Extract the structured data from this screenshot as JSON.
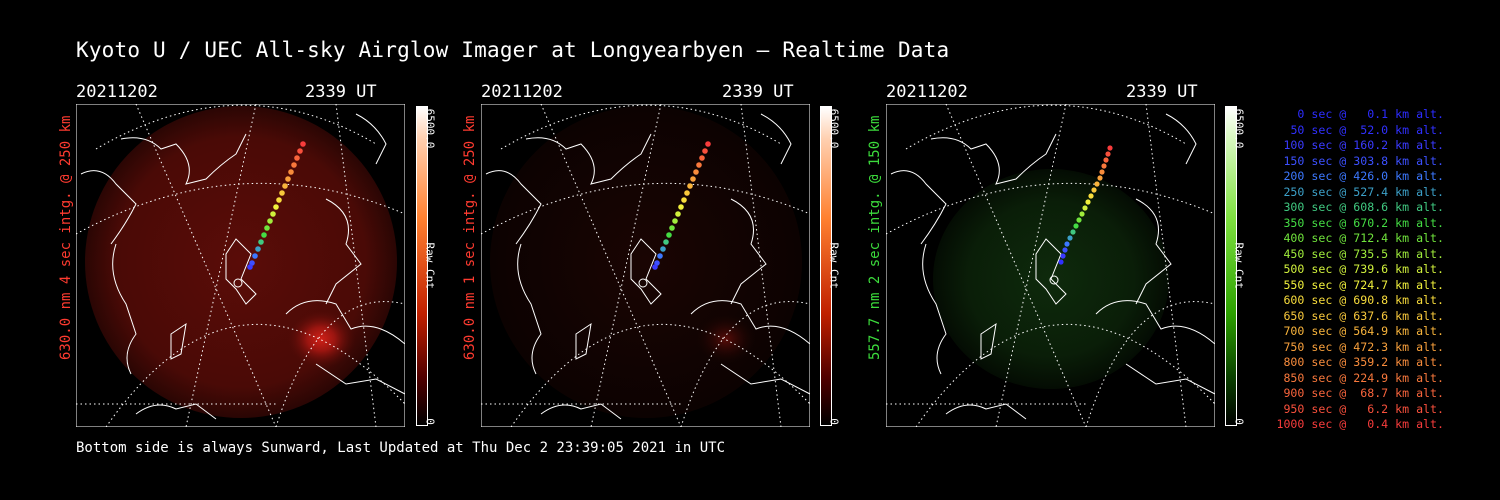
{
  "title": "Kyoto U / UEC All-sky Airglow Imager at Longyearbyen — Realtime Data",
  "panels": [
    {
      "date": "20211202",
      "time": "2339 UT",
      "ylabel": "630.0 nm 4 sec intg. @ 250 km",
      "label_color": "#ff3b30",
      "cbar_max": "6500.0",
      "cbar_unit": "Raw Cnt",
      "cbar_zero": "0",
      "colormap": "red"
    },
    {
      "date": "20211202",
      "time": "2339 UT",
      "ylabel": "630.0 nm 1 sec intg. @ 250 km",
      "label_color": "#ff3b30",
      "cbar_max": "6500.0",
      "cbar_unit": "Raw Cnt",
      "cbar_zero": "0",
      "colormap": "red"
    },
    {
      "date": "20211202",
      "time": "2339 UT",
      "ylabel": "557.7 nm 2 sec intg. @ 150 km",
      "label_color": "#3cdc3c",
      "cbar_max": "6500.0",
      "cbar_unit": "Raw Cnt",
      "cbar_zero": "0",
      "colormap": "green"
    }
  ],
  "footer": "Bottom side is always Sunward, Last Updated at Thu Dec  2 23:39:05 2021 in UTC",
  "legend": [
    {
      "text": "0 sec @   0.1 km alt.",
      "color": "#2c2cff"
    },
    {
      "text": "50 sec @  52.0 km alt.",
      "color": "#3030ff"
    },
    {
      "text": "100 sec @ 160.2 km alt.",
      "color": "#3a3aff"
    },
    {
      "text": "150 sec @ 303.8 km alt.",
      "color": "#3c50ff"
    },
    {
      "text": "200 sec @ 426.0 km alt.",
      "color": "#3c78ff"
    },
    {
      "text": "250 sec @ 527.4 km alt.",
      "color": "#3ca0c8"
    },
    {
      "text": "300 sec @ 608.6 km alt.",
      "color": "#40c880"
    },
    {
      "text": "350 sec @ 670.2 km alt.",
      "color": "#44dc44"
    },
    {
      "text": "400 sec @ 712.4 km alt.",
      "color": "#70e43c"
    },
    {
      "text": "450 sec @ 735.5 km alt.",
      "color": "#a0ec3c"
    },
    {
      "text": "500 sec @ 739.6 km alt.",
      "color": "#d0f03c"
    },
    {
      "text": "550 sec @ 724.7 km alt.",
      "color": "#f0f03c"
    },
    {
      "text": "600 sec @ 690.8 km alt.",
      "color": "#f8dc3c"
    },
    {
      "text": "650 sec @ 637.6 km alt.",
      "color": "#f8c83c"
    },
    {
      "text": "700 sec @ 564.9 km alt.",
      "color": "#f8b43c"
    },
    {
      "text": "750 sec @ 472.3 km alt.",
      "color": "#f8a03c"
    },
    {
      "text": "800 sec @ 359.2 km alt.",
      "color": "#f88c3c"
    },
    {
      "text": "850 sec @ 224.9 km alt.",
      "color": "#f8783c"
    },
    {
      "text": "900 sec @  68.7 km alt.",
      "color": "#f8643c"
    },
    {
      "text": "950 sec @   6.2 km alt.",
      "color": "#f8503c"
    },
    {
      "text": "1000 sec @   0.4 km alt.",
      "color": "#f83c3c"
    }
  ]
}
